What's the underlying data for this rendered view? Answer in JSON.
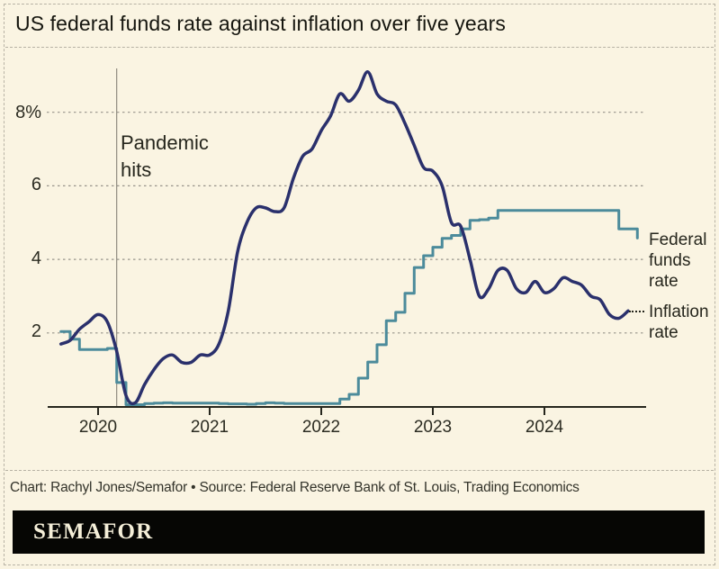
{
  "header": {
    "title": "US federal funds rate against inflation over five years"
  },
  "footer": {
    "credit": "Chart: Rachyl Jones/Semafor • Source: Federal Reserve Bank of St. Louis, Trading Economics",
    "logo_text": "SEMAFOR"
  },
  "colors": {
    "background": "#faf4e2",
    "inflation_line": "#2a306c",
    "fed_funds_line": "#4c8b9b",
    "grid": "#97938a",
    "axis": "#26261d",
    "annotation_line": "#8f8b80",
    "text": "#26261d",
    "logo_bg": "#060604",
    "logo_text": "#f5efd9"
  },
  "chart_data": {
    "type": "line",
    "title": "US federal funds rate against inflation over five years",
    "xlabel": "",
    "ylabel": "",
    "ylim": [
      0,
      9.2
    ],
    "grid": "dashed-horizontal",
    "y_ticks": [
      8,
      6,
      4,
      2
    ],
    "y_tick_labels": [
      "8%",
      "6",
      "4",
      "2"
    ],
    "x_tick_labels": [
      "2020",
      "2021",
      "2022",
      "2023",
      "2024"
    ],
    "start_month": "2019-09",
    "annotation": {
      "label": "Pandemic hits",
      "x_month": "2020-03"
    },
    "legend_position": "right-of-line-ends",
    "series": [
      {
        "name": "Federal funds rate",
        "label_lines": "Federal funds rate",
        "style": "step",
        "color": "#4c8b9b",
        "values": [
          2.04,
          1.83,
          1.55,
          1.55,
          1.55,
          1.58,
          0.65,
          0.05,
          0.05,
          0.08,
          0.09,
          0.1,
          0.09,
          0.09,
          0.09,
          0.09,
          0.09,
          0.08,
          0.07,
          0.07,
          0.06,
          0.08,
          0.1,
          0.09,
          0.08,
          0.08,
          0.08,
          0.08,
          0.08,
          0.08,
          0.2,
          0.33,
          0.77,
          1.21,
          1.68,
          2.33,
          2.56,
          3.08,
          3.78,
          4.1,
          4.33,
          4.57,
          4.65,
          4.83,
          5.06,
          5.08,
          5.12,
          5.33,
          5.33,
          5.33,
          5.33,
          5.33,
          5.33,
          5.33,
          5.33,
          5.33,
          5.33,
          5.33,
          5.33,
          5.33,
          4.83,
          4.83,
          4.58
        ]
      },
      {
        "name": "Inflation rate",
        "label_lines": "Inflation rate",
        "style": "smooth",
        "color": "#2a306c",
        "values": [
          1.7,
          1.8,
          2.1,
          2.3,
          2.5,
          2.3,
          1.5,
          0.3,
          0.1,
          0.6,
          1.0,
          1.3,
          1.4,
          1.2,
          1.2,
          1.4,
          1.4,
          1.7,
          2.6,
          4.2,
          5.0,
          5.4,
          5.4,
          5.3,
          5.4,
          6.2,
          6.8,
          7.0,
          7.5,
          7.9,
          8.5,
          8.3,
          8.6,
          9.1,
          8.5,
          8.3,
          8.2,
          7.7,
          7.1,
          6.5,
          6.4,
          6.0,
          5.0,
          4.9,
          4.0,
          3.0,
          3.2,
          3.7,
          3.7,
          3.2,
          3.1,
          3.4,
          3.1,
          3.2,
          3.5,
          3.4,
          3.3,
          3.0,
          2.9,
          2.5,
          2.4,
          2.6
        ]
      }
    ]
  }
}
